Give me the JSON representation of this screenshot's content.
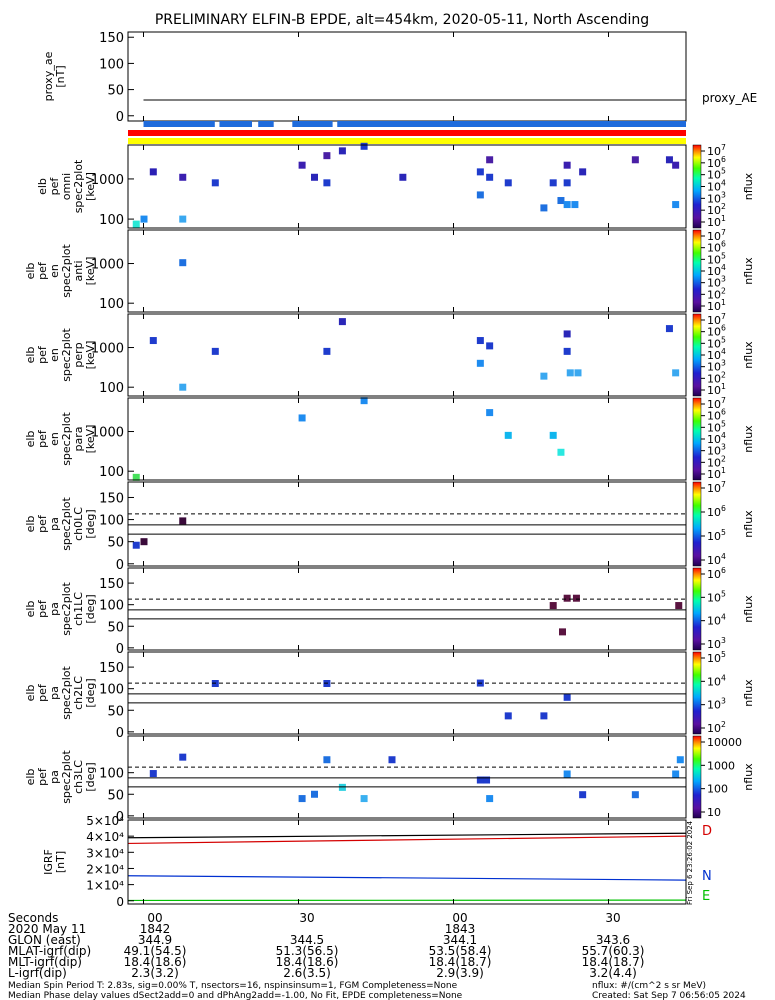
{
  "title": "PRELIMINARY ELFIN-B EPDE, alt=454km, 2020-05-11, North Ascending",
  "colors": {
    "status_blue": "#1e6bdc",
    "status_red": "#ff0000",
    "status_yellow": "#ffff00",
    "btot_line": "#000000",
    "d_line": "#d40000",
    "n_line": "#0030d0",
    "e_line": "#00c000"
  },
  "side_stamp": "Fri Sep  6 23:26:02 2024",
  "chart_data": [
    {
      "id": "proxy_ae",
      "type": "line",
      "ylabel_lines": [
        "proxy_ae",
        "[nT]"
      ],
      "right_label": "proxy_AE",
      "yticks": [
        "150",
        "100",
        "50",
        "0"
      ],
      "ylim": [
        -10,
        160
      ],
      "series": [
        {
          "name": "proxy_AE",
          "x": [
            0,
            40.5
          ],
          "y": [
            30,
            30
          ]
        }
      ]
    },
    {
      "id": "status_bars",
      "type": "bar",
      "blue_segments": [
        [
          0,
          4.6
        ],
        [
          4.9,
          7.0
        ],
        [
          7.4,
          8.4
        ],
        [
          9.6,
          12.2
        ],
        [
          12.5,
          40.5
        ]
      ],
      "red_segment": [
        0,
        40.5
      ],
      "yellow_segment": [
        0,
        40.5
      ]
    },
    {
      "id": "omni",
      "type": "heatmap",
      "ylabel_lines": [
        "elb",
        "pef",
        "omni",
        "spec2plot",
        "[keV]"
      ],
      "yticks": [
        "1000",
        "100"
      ],
      "ylim": [
        60,
        7000
      ],
      "colorbar_ticks": [
        "10^7",
        "10^6",
        "10^5",
        "10^4",
        "10^3",
        "10^2",
        "10^1"
      ],
      "colorbar_label": "nflux",
      "cells": [
        {
          "t": 0.0,
          "e": 100,
          "c": "#1e8cf0"
        },
        {
          "t": -0.5,
          "e": 75,
          "c": "#29e8d5"
        },
        {
          "t": 0.6,
          "e": 1500,
          "c": "#2a1fb4"
        },
        {
          "t": 2.5,
          "e": 100,
          "c": "#3aa8f0"
        },
        {
          "t": 2.5,
          "e": 1100,
          "c": "#3b1fb0"
        },
        {
          "t": 4.6,
          "e": 800,
          "c": "#1f3ccd"
        },
        {
          "t": 10.2,
          "e": 2200,
          "c": "#3b1fb0"
        },
        {
          "t": 11.0,
          "e": 1100,
          "c": "#2a26b8"
        },
        {
          "t": 11.8,
          "e": 800,
          "c": "#1f3ccd"
        },
        {
          "t": 11.8,
          "e": 3800,
          "c": "#4a1fa5"
        },
        {
          "t": 12.8,
          "e": 5000,
          "c": "#2a26b8"
        },
        {
          "t": 14.2,
          "e": 6500,
          "c": "#1f3ccd"
        },
        {
          "t": 16.7,
          "e": 1100,
          "c": "#2a26b8"
        },
        {
          "t": 21.7,
          "e": 1500,
          "c": "#1f3ccd"
        },
        {
          "t": 21.7,
          "e": 400,
          "c": "#1e70e0"
        },
        {
          "t": 22.3,
          "e": 3000,
          "c": "#4a1fa5"
        },
        {
          "t": 22.3,
          "e": 1100,
          "c": "#1f3ccd"
        },
        {
          "t": 23.5,
          "e": 800,
          "c": "#1f3ccd"
        },
        {
          "t": 25.8,
          "e": 190,
          "c": "#1e70e0"
        },
        {
          "t": 26.4,
          "e": 800,
          "c": "#1f3ccd"
        },
        {
          "t": 26.9,
          "e": 290,
          "c": "#1e70e0"
        },
        {
          "t": 27.3,
          "e": 800,
          "c": "#1f3ccd"
        },
        {
          "t": 27.3,
          "e": 2200,
          "c": "#3b1fb0"
        },
        {
          "t": 27.3,
          "e": 230,
          "c": "#1e8cf0"
        },
        {
          "t": 27.8,
          "e": 230,
          "c": "#1e8cf0"
        },
        {
          "t": 28.3,
          "e": 1500,
          "c": "#2a26b8"
        },
        {
          "t": 31.7,
          "e": 3000,
          "c": "#4a1fa5"
        },
        {
          "t": 33.9,
          "e": 3000,
          "c": "#2a26b8"
        },
        {
          "t": 34.3,
          "e": 2200,
          "c": "#3b1fb0"
        },
        {
          "t": 34.3,
          "e": 230,
          "c": "#1e8cf0"
        }
      ]
    },
    {
      "id": "anti",
      "type": "heatmap",
      "ylabel_lines": [
        "elb",
        "pef",
        "en",
        "spec2plot",
        "anti",
        "[keV]"
      ],
      "yticks": [
        "1000",
        "100"
      ],
      "ylim": [
        60,
        7000
      ],
      "colorbar_ticks": [
        "10^7",
        "10^6",
        "10^5",
        "10^4",
        "10^3",
        "10^2",
        "10^1"
      ],
      "colorbar_label": "nflux",
      "cells": [
        {
          "t": 2.5,
          "e": 1050,
          "c": "#1e70e0"
        }
      ]
    },
    {
      "id": "perp",
      "type": "heatmap",
      "ylabel_lines": [
        "elb",
        "pef",
        "en",
        "spec2plot",
        "perp",
        "[keV]"
      ],
      "yticks": [
        "1000",
        "100"
      ],
      "ylim": [
        60,
        7000
      ],
      "colorbar_ticks": [
        "10^7",
        "10^6",
        "10^5",
        "10^4",
        "10^3",
        "10^2",
        "10^1"
      ],
      "colorbar_label": "nflux",
      "cells": [
        {
          "t": 0.6,
          "e": 1500,
          "c": "#1f3ccd"
        },
        {
          "t": 2.5,
          "e": 100,
          "c": "#3aa8f0"
        },
        {
          "t": 4.6,
          "e": 800,
          "c": "#1f3ccd"
        },
        {
          "t": 11.8,
          "e": 800,
          "c": "#1f3ccd"
        },
        {
          "t": 12.8,
          "e": 4500,
          "c": "#2a26b8"
        },
        {
          "t": 21.7,
          "e": 1500,
          "c": "#1f3ccd"
        },
        {
          "t": 21.7,
          "e": 400,
          "c": "#1e8cf0"
        },
        {
          "t": 22.3,
          "e": 1100,
          "c": "#1f3ccd"
        },
        {
          "t": 25.8,
          "e": 190,
          "c": "#3aa8f0"
        },
        {
          "t": 27.3,
          "e": 2200,
          "c": "#2a26b8"
        },
        {
          "t": 27.3,
          "e": 800,
          "c": "#1f3ccd"
        },
        {
          "t": 27.5,
          "e": 230,
          "c": "#3aa8f0"
        },
        {
          "t": 28.0,
          "e": 230,
          "c": "#3aa8f0"
        },
        {
          "t": 33.9,
          "e": 3000,
          "c": "#1f3ccd"
        },
        {
          "t": 34.3,
          "e": 230,
          "c": "#3aa8f0"
        }
      ]
    },
    {
      "id": "para",
      "type": "heatmap",
      "ylabel_lines": [
        "elb",
        "pef",
        "en",
        "spec2plot",
        "para",
        "[keV]"
      ],
      "yticks": [
        "1000",
        "100"
      ],
      "ylim": [
        60,
        7000
      ],
      "colorbar_ticks": [
        "10^7",
        "10^6",
        "10^5",
        "10^4",
        "10^3",
        "10^2",
        "10^1"
      ],
      "colorbar_label": "nflux",
      "cells": [
        {
          "t": -0.5,
          "e": 70,
          "c": "#46e05a"
        },
        {
          "t": 10.2,
          "e": 2200,
          "c": "#1e8cf0"
        },
        {
          "t": 14.2,
          "e": 6000,
          "c": "#1e8cf0"
        },
        {
          "t": 22.3,
          "e": 3000,
          "c": "#1e8cf0"
        },
        {
          "t": 23.5,
          "e": 800,
          "c": "#10b6ee"
        },
        {
          "t": 26.4,
          "e": 800,
          "c": "#10b6ee"
        },
        {
          "t": 26.9,
          "e": 300,
          "c": "#2ae8e0"
        }
      ]
    },
    {
      "id": "ch0",
      "type": "heatmap",
      "ylabel_lines": [
        "elb",
        "pef",
        "pa",
        "spec2plot",
        "ch0LC",
        "[deg]"
      ],
      "yticks": [
        "150",
        "100",
        "50",
        "0"
      ],
      "ylim": [
        -5,
        185
      ],
      "colorbar_ticks": [
        "10^7",
        "10^6",
        "10^5",
        "10^4"
      ],
      "colorbar_label": "nflux",
      "lines": {
        "dashed": 113,
        "solid": [
          88,
          67
        ]
      },
      "cells": [
        {
          "t": -0.5,
          "pa": 42,
          "c": "#1e3ccd"
        },
        {
          "t": 0.0,
          "pa": 50,
          "c": "#3a0a3a"
        },
        {
          "t": 2.5,
          "pa": 97,
          "c": "#3a0a3a"
        }
      ]
    },
    {
      "id": "ch1",
      "type": "heatmap",
      "ylabel_lines": [
        "elb",
        "pef",
        "pa",
        "spec2plot",
        "ch1LC",
        "[deg]"
      ],
      "yticks": [
        "150",
        "100",
        "50",
        "0"
      ],
      "ylim": [
        -5,
        185
      ],
      "colorbar_ticks": [
        "10^6",
        "10^5",
        "10^4",
        "10^3"
      ],
      "colorbar_label": "nflux",
      "lines": {
        "dashed": 113,
        "solid": [
          88,
          67
        ]
      },
      "cells": [
        {
          "t": 26.4,
          "pa": 98,
          "c": "#5a1440"
        },
        {
          "t": 27.0,
          "pa": 37,
          "c": "#5a1440"
        },
        {
          "t": 27.3,
          "pa": 115,
          "c": "#5a1440"
        },
        {
          "t": 27.9,
          "pa": 115,
          "c": "#5a1440"
        },
        {
          "t": 34.5,
          "pa": 98,
          "c": "#5a1440"
        }
      ]
    },
    {
      "id": "ch2",
      "type": "heatmap",
      "ylabel_lines": [
        "elb",
        "pef",
        "pa",
        "spec2plot",
        "ch2LC",
        "[deg]"
      ],
      "yticks": [
        "150",
        "100",
        "50",
        "0"
      ],
      "ylim": [
        -5,
        185
      ],
      "colorbar_ticks": [
        "10^5",
        "10^4",
        "10^3",
        "10^2"
      ],
      "colorbar_label": "nflux",
      "lines": {
        "dashed": 113,
        "solid": [
          88,
          67
        ]
      },
      "cells": [
        {
          "t": 4.6,
          "pa": 112,
          "c": "#1f3ccd"
        },
        {
          "t": 11.8,
          "pa": 112,
          "c": "#1f3ccd"
        },
        {
          "t": 21.7,
          "pa": 113,
          "c": "#1f3ccd"
        },
        {
          "t": 23.5,
          "pa": 37,
          "c": "#1f3ccd"
        },
        {
          "t": 25.8,
          "pa": 37,
          "c": "#1f3ccd"
        },
        {
          "t": 27.3,
          "pa": 80,
          "c": "#1f3ccd"
        }
      ]
    },
    {
      "id": "ch3",
      "type": "heatmap",
      "ylabel_lines": [
        "elb",
        "pef",
        "pa",
        "spec2plot",
        "ch3LC",
        "[deg]"
      ],
      "yticks": [
        "100",
        "50",
        "0"
      ],
      "ylim": [
        -5,
        185
      ],
      "colorbar_ticks": [
        "10000",
        "1000",
        "100",
        "10"
      ],
      "colorbar_label": "nflux",
      "lines": {
        "dashed": 113,
        "solid": [
          88,
          67
        ]
      },
      "cells": [
        {
          "t": 0.6,
          "pa": 98,
          "c": "#1f3ccd"
        },
        {
          "t": 2.5,
          "pa": 136,
          "c": "#1f3ccd"
        },
        {
          "t": 10.2,
          "pa": 40,
          "c": "#1e70e0"
        },
        {
          "t": 11.0,
          "pa": 50,
          "c": "#1e70e0"
        },
        {
          "t": 11.8,
          "pa": 130,
          "c": "#1e70e0"
        },
        {
          "t": 12.8,
          "pa": 66,
          "c": "#29d0e0"
        },
        {
          "t": 14.2,
          "pa": 40,
          "c": "#3ab0f0"
        },
        {
          "t": 16.0,
          "pa": 130,
          "c": "#1f3ccd"
        },
        {
          "t": 21.7,
          "pa": 83,
          "c": "#1f3ccd"
        },
        {
          "t": 22.1,
          "pa": 83,
          "c": "#1f3ccd"
        },
        {
          "t": 22.3,
          "pa": 40,
          "c": "#1e8cf0"
        },
        {
          "t": 27.3,
          "pa": 97,
          "c": "#1e8cf0"
        },
        {
          "t": 28.3,
          "pa": 49,
          "c": "#1f3ccd"
        },
        {
          "t": 31.7,
          "pa": 49,
          "c": "#1e70e0"
        },
        {
          "t": 34.3,
          "pa": 97,
          "c": "#1e8cf0"
        },
        {
          "t": 34.6,
          "pa": 130,
          "c": "#1e8cf0"
        }
      ]
    },
    {
      "id": "igrf",
      "type": "line",
      "ylabel_lines": [
        "IGRF",
        "[nT]"
      ],
      "yticks": [
        "5×10⁴",
        "4×10⁴",
        "3×10⁴",
        "2×10⁴",
        "1×10⁴",
        "0"
      ],
      "ylim": [
        -2000,
        50000
      ],
      "series": [
        {
          "name": "",
          "x": [
            0,
            40.5
          ],
          "y": [
            39000,
            41800
          ]
        },
        {
          "name": "D",
          "x": [
            0,
            40.5
          ],
          "y": [
            35500,
            40000
          ]
        },
        {
          "name": "N",
          "x": [
            0,
            40.5
          ],
          "y": [
            15500,
            12800
          ]
        },
        {
          "name": "E",
          "x": [
            0,
            40.5
          ],
          "y": [
            200,
            400
          ]
        }
      ],
      "right_labels": [
        "D",
        "N",
        "E"
      ]
    }
  ],
  "x_axis": {
    "ticks": [
      {
        "t": 0,
        "label": "00"
      },
      {
        "t": 10,
        "label": "30"
      },
      {
        "t": 20,
        "label": "00"
      },
      {
        "t": 30,
        "label": "30"
      }
    ]
  },
  "ephemeris": {
    "rows": [
      {
        "label": "Seconds",
        "values": [
          "00",
          "30",
          "00",
          "30"
        ]
      },
      {
        "label": "2020 May 11",
        "values": [
          "1842",
          "",
          "1843",
          ""
        ]
      },
      {
        "label": "GLON (east)",
        "values": [
          "344.9",
          "344.5",
          "344.1",
          "343.6"
        ]
      },
      {
        "label": "MLAT-igrf(dip)",
        "values": [
          "49.1(54.5)",
          "51.3(56.5)",
          "53.5(58.4)",
          "55.7(60.3)"
        ]
      },
      {
        "label": "MLT-igrf(dip)",
        "values": [
          "18.4(18.6)",
          "18.4(18.6)",
          "18.4(18.7)",
          "18.4(18.7)"
        ]
      },
      {
        "label": "L-igrf(dip)",
        "values": [
          "2.3(3.2)",
          "2.6(3.5)",
          "2.9(3.9)",
          "3.2(4.4)"
        ]
      }
    ]
  },
  "footer": {
    "line1": "Median Spin Period T: 2.83s, sig=0.00% T, nsectors=16, nspinsinsum=1, FGM Completeness=None",
    "line1_right": "nflux: #/(cm^2 s sr MeV)",
    "line2": "Median Phase delay values dSect2add=0 and dPhAng2add=-1.00, No Fit, EPDE completeness=None",
    "line2_right": "Created: Sat Sep  7 06:56:05 2024"
  }
}
